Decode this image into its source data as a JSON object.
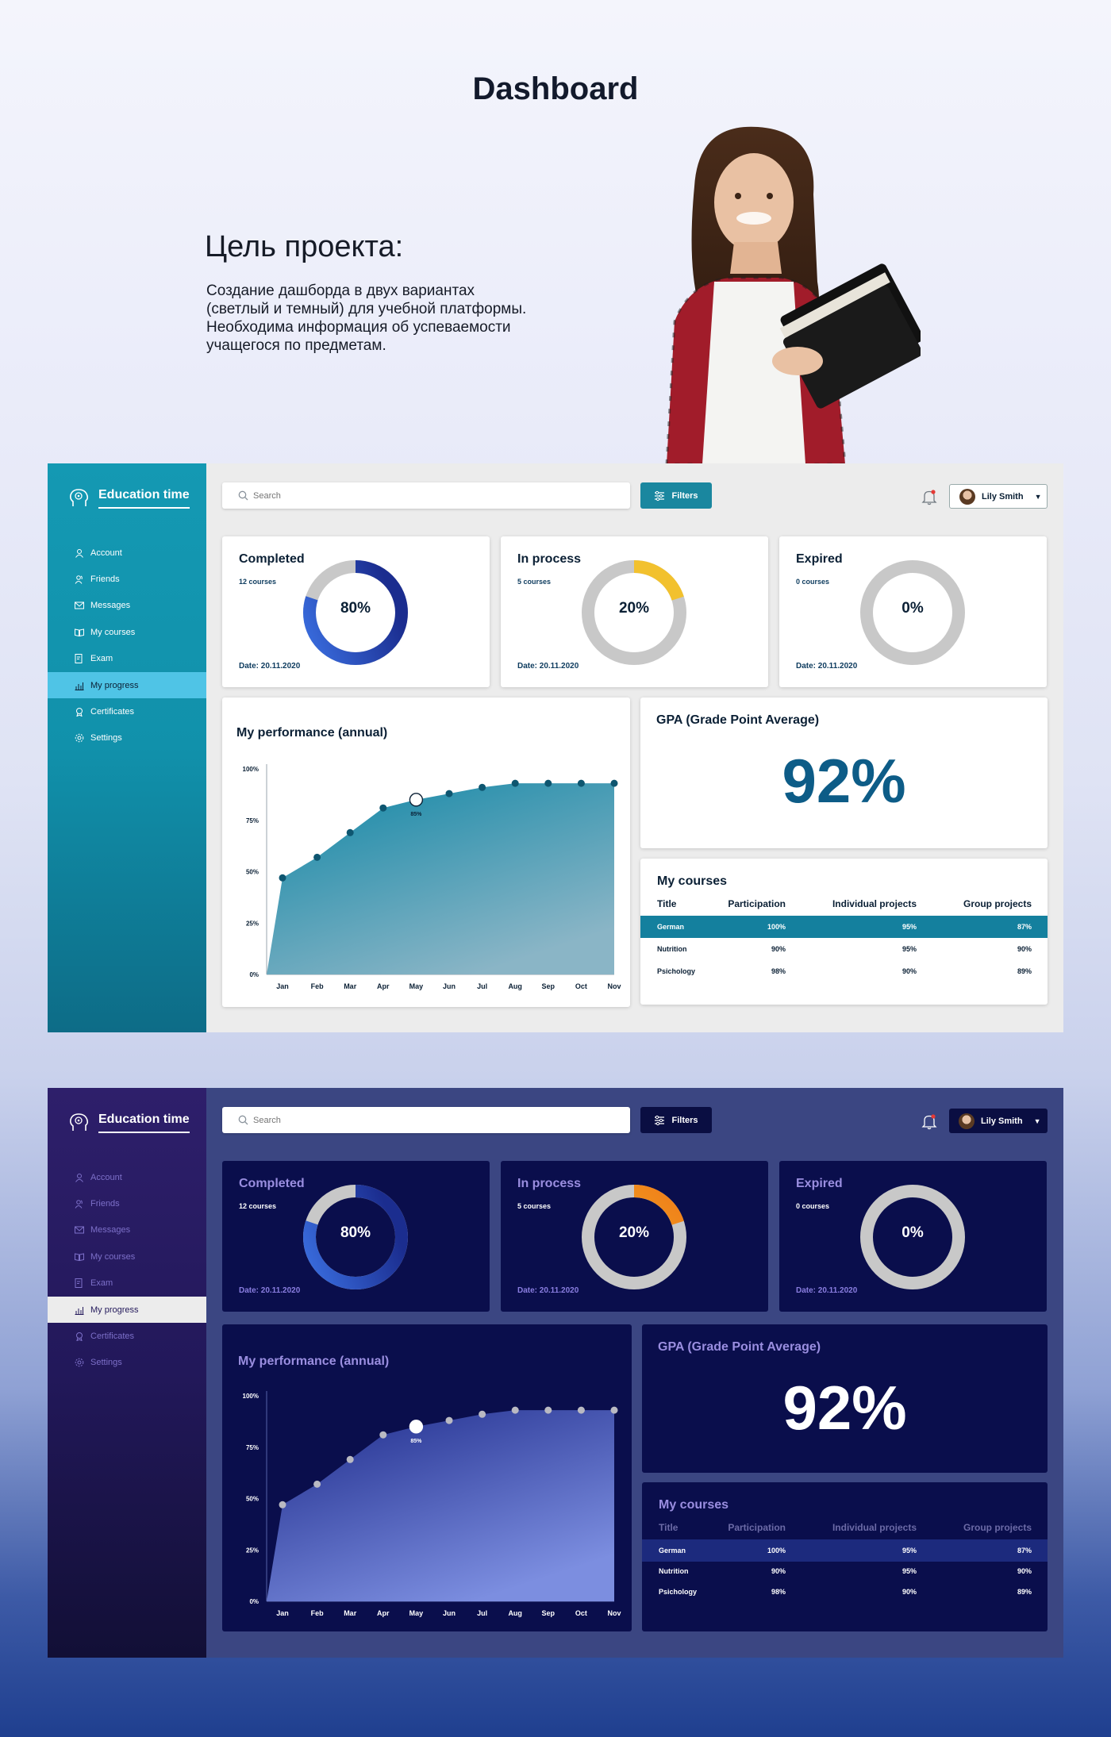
{
  "hero": {
    "title": "Dashboard",
    "goal_title": "Цель проекта:",
    "goal_lines": [
      "Создание дашборда в двух вариантах",
      "(светлый и темный) для учебной платформы.",
      "Необходима информация об успеваемости",
      "учащегося по предметам."
    ]
  },
  "app": {
    "name": "Education time",
    "nav": [
      {
        "label": "Account",
        "icon": "user-icon"
      },
      {
        "label": "Friends",
        "icon": "friends-icon"
      },
      {
        "label": "Messages",
        "icon": "envelope-icon"
      },
      {
        "label": "My courses",
        "icon": "book-icon"
      },
      {
        "label": "Exam",
        "icon": "exam-icon"
      },
      {
        "label": "My progress",
        "icon": "chart-icon",
        "active": true
      },
      {
        "label": "Certificates",
        "icon": "certificate-icon"
      },
      {
        "label": "Settings",
        "icon": "gear-icon"
      }
    ],
    "search_placeholder": "Search",
    "filters_label": "Filters",
    "user_name": "Lily Smith"
  },
  "stats": [
    {
      "title": "Completed",
      "sub": "12 courses",
      "pct_label": "80%",
      "value": 0.8,
      "date": "Date: 20.11.2020"
    },
    {
      "title": "In process",
      "sub": "5 courses",
      "pct_label": "20%",
      "value": 0.2,
      "date": "Date: 20.11.2020"
    },
    {
      "title": "Expired",
      "sub": "0 courses",
      "pct_label": "0%",
      "value": 0.0,
      "date": "Date: 20.11.2020"
    }
  ],
  "performance": {
    "title": "My performance (annual)",
    "highlight_label": "85%"
  },
  "chart_data": {
    "type": "area",
    "categories": [
      "Jan",
      "Feb",
      "Mar",
      "Apr",
      "May",
      "Jun",
      "Jul",
      "Aug",
      "Sep",
      "Oct",
      "Nov"
    ],
    "values": [
      47,
      57,
      69,
      81,
      85,
      88,
      91,
      93,
      93,
      93,
      93
    ],
    "highlight_index": 4,
    "y_ticks": [
      "0%",
      "25%",
      "50%",
      "75%",
      "100%"
    ],
    "ylim": [
      0,
      100
    ]
  },
  "gpa": {
    "title": "GPA (Grade Point Average)",
    "value": "92%"
  },
  "courses": {
    "title": "My courses",
    "headers": [
      "Title",
      "Participation",
      "Individual projects",
      "Group projects"
    ],
    "rows": [
      [
        "German",
        "100%",
        "95%",
        "87%"
      ],
      [
        "Nutrition",
        "90%",
        "95%",
        "90%"
      ],
      [
        "Psichology",
        "98%",
        "90%",
        "89%"
      ]
    ]
  },
  "colors": {
    "light_accent": "#14809e",
    "dark_accent": "#1c2a7d",
    "donut_blue": "#2a4fc0",
    "donut_yellow": "#f2c12e",
    "donut_track": "#c8c8c8"
  }
}
